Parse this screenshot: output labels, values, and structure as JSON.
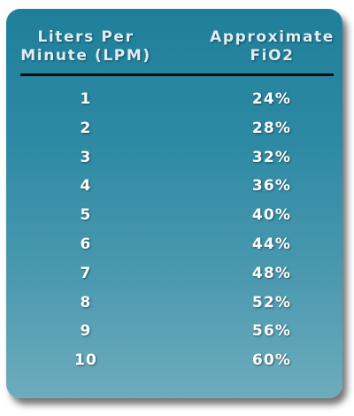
{
  "table": {
    "headers": {
      "lpm": [
        "Liters Per",
        "Minute (LPM)"
      ],
      "fio2": [
        "Approximate",
        "FiO2"
      ]
    },
    "rows": [
      {
        "lpm": "1",
        "fio2": "24%"
      },
      {
        "lpm": "2",
        "fio2": "28%"
      },
      {
        "lpm": "3",
        "fio2": "32%"
      },
      {
        "lpm": "4",
        "fio2": "36%"
      },
      {
        "lpm": "5",
        "fio2": "40%"
      },
      {
        "lpm": "6",
        "fio2": "44%"
      },
      {
        "lpm": "7",
        "fio2": "48%"
      },
      {
        "lpm": "8",
        "fio2": "52%"
      },
      {
        "lpm": "9",
        "fio2": "56%"
      },
      {
        "lpm": "10",
        "fio2": "60%"
      }
    ]
  },
  "colors": {
    "card_top": "#1f7f9a",
    "card_bottom": "#6eacbd",
    "text": "#ffffff",
    "rule": "#0b0b0b"
  }
}
